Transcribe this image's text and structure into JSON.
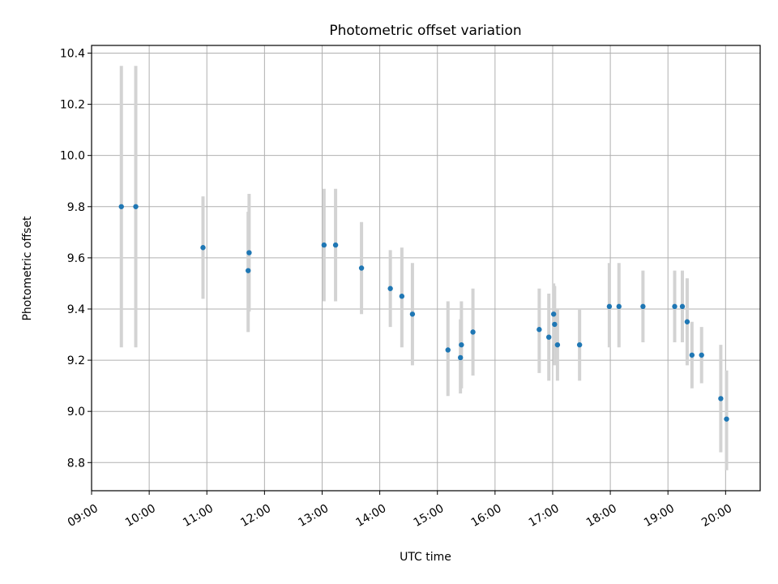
{
  "chart_data": {
    "type": "scatter",
    "title": "Photometric offset variation",
    "xlabel": "UTC time",
    "ylabel": "Photometric offset",
    "xlim": [
      "09:00",
      "20:36"
    ],
    "ylim": [
      8.69,
      10.43
    ],
    "x_ticks": [
      "09:00",
      "10:00",
      "11:00",
      "12:00",
      "13:00",
      "14:00",
      "15:00",
      "16:00",
      "17:00",
      "18:00",
      "19:00",
      "20:00"
    ],
    "y_ticks": [
      "8.8",
      "9.0",
      "9.2",
      "9.4",
      "9.6",
      "9.8",
      "10.0",
      "10.2",
      "10.4"
    ],
    "grid": true,
    "marker_color": "#1f77b4",
    "errorbar_color": "#d3d3d3",
    "points": [
      {
        "x": "09:31",
        "y": 9.8,
        "lo": 9.25,
        "hi": 10.35
      },
      {
        "x": "09:46",
        "y": 9.8,
        "lo": 9.25,
        "hi": 10.35
      },
      {
        "x": "10:56",
        "y": 9.64,
        "lo": 9.44,
        "hi": 9.84
      },
      {
        "x": "11:43",
        "y": 9.55,
        "lo": 9.31,
        "hi": 9.78
      },
      {
        "x": "11:44",
        "y": 9.62,
        "lo": 9.39,
        "hi": 9.85
      },
      {
        "x": "13:02",
        "y": 9.65,
        "lo": 9.43,
        "hi": 9.87
      },
      {
        "x": "13:14",
        "y": 9.65,
        "lo": 9.43,
        "hi": 9.87
      },
      {
        "x": "13:41",
        "y": 9.56,
        "lo": 9.38,
        "hi": 9.74
      },
      {
        "x": "14:11",
        "y": 9.48,
        "lo": 9.33,
        "hi": 9.63
      },
      {
        "x": "14:23",
        "y": 9.45,
        "lo": 9.25,
        "hi": 9.64
      },
      {
        "x": "14:34",
        "y": 9.38,
        "lo": 9.18,
        "hi": 9.58
      },
      {
        "x": "15:11",
        "y": 9.24,
        "lo": 9.06,
        "hi": 9.43
      },
      {
        "x": "15:24",
        "y": 9.21,
        "lo": 9.07,
        "hi": 9.36
      },
      {
        "x": "15:25",
        "y": 9.26,
        "lo": 9.09,
        "hi": 9.43
      },
      {
        "x": "15:37",
        "y": 9.31,
        "lo": 9.14,
        "hi": 9.48
      },
      {
        "x": "16:46",
        "y": 9.32,
        "lo": 9.15,
        "hi": 9.48
      },
      {
        "x": "16:56",
        "y": 9.29,
        "lo": 9.12,
        "hi": 9.46
      },
      {
        "x": "17:01",
        "y": 9.38,
        "lo": 9.26,
        "hi": 9.5
      },
      {
        "x": "17:02",
        "y": 9.34,
        "lo": 9.18,
        "hi": 9.49
      },
      {
        "x": "17:05",
        "y": 9.26,
        "lo": 9.12,
        "hi": 9.4
      },
      {
        "x": "17:28",
        "y": 9.26,
        "lo": 9.12,
        "hi": 9.4
      },
      {
        "x": "17:59",
        "y": 9.41,
        "lo": 9.25,
        "hi": 9.58
      },
      {
        "x": "18:09",
        "y": 9.41,
        "lo": 9.25,
        "hi": 9.58
      },
      {
        "x": "18:34",
        "y": 9.41,
        "lo": 9.27,
        "hi": 9.55
      },
      {
        "x": "19:07",
        "y": 9.41,
        "lo": 9.27,
        "hi": 9.55
      },
      {
        "x": "19:15",
        "y": 9.41,
        "lo": 9.27,
        "hi": 9.55
      },
      {
        "x": "19:20",
        "y": 9.35,
        "lo": 9.18,
        "hi": 9.52
      },
      {
        "x": "19:25",
        "y": 9.22,
        "lo": 9.09,
        "hi": 9.35
      },
      {
        "x": "19:35",
        "y": 9.22,
        "lo": 9.11,
        "hi": 9.33
      },
      {
        "x": "19:55",
        "y": 9.05,
        "lo": 8.84,
        "hi": 9.26
      },
      {
        "x": "20:01",
        "y": 8.97,
        "lo": 8.77,
        "hi": 9.16
      }
    ]
  }
}
